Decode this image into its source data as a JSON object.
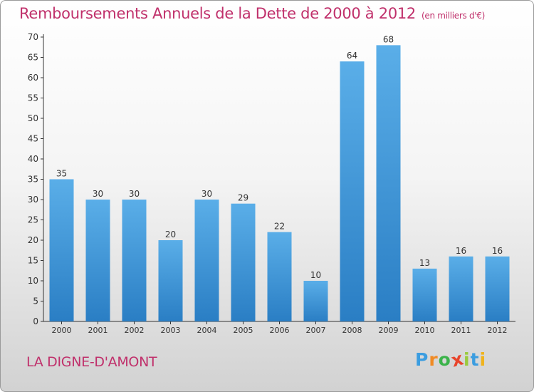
{
  "chart_data": {
    "type": "bar",
    "title": "Remboursements Annuels de la Dette de 2000 à 2012",
    "subtitle": "(en milliers d'€)",
    "categories": [
      "2000",
      "2001",
      "2002",
      "2003",
      "2004",
      "2005",
      "2006",
      "2007",
      "2008",
      "2009",
      "2010",
      "2011",
      "2012"
    ],
    "values": [
      35,
      30,
      30,
      20,
      30,
      29,
      22,
      10,
      64,
      68,
      13,
      16,
      16
    ],
    "ylim": [
      0,
      70
    ],
    "yticks": [
      0,
      5,
      10,
      15,
      20,
      25,
      30,
      35,
      40,
      45,
      50,
      55,
      60,
      65,
      70
    ],
    "grid": false,
    "bar_color_top": "#5aaee8",
    "bar_color_bottom": "#2a7ec4"
  },
  "footer": {
    "city": "LA DIGNE-D'AMONT",
    "logo_letters": [
      "P",
      "r",
      "o",
      "x",
      "i",
      "t",
      "i"
    ],
    "logo_colors": [
      "#3b9de0",
      "#f08a24",
      "#3bb34a",
      "#e8452c",
      "#9aca3c",
      "#3b9de0",
      "#f0b31c"
    ]
  },
  "colors": {
    "title": "#c0306b",
    "axis": "#333333"
  }
}
